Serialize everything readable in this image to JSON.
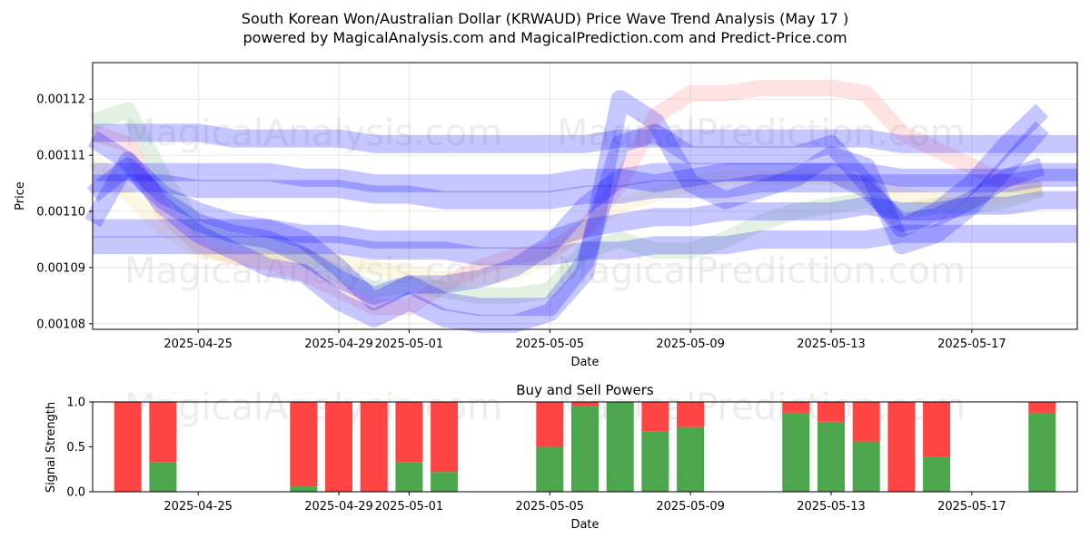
{
  "header": {
    "title_line1": "South Korean Won/Australian Dollar (KRWAUD) Price Wave Trend Analysis (May 17 )",
    "title_line2": "powered by MagicalAnalysis.com and MagicalPrediction.com and Predict-Price.com"
  },
  "watermarks": [
    "MagicalAnalysis.com",
    "MagicalPrediction.com"
  ],
  "chart_data": [
    {
      "type": "line",
      "title": "",
      "xlabel": "Date",
      "ylabel": "Price",
      "grid": true,
      "legend": "none",
      "xlim": [
        "2025-04-22",
        "2025-05-20"
      ],
      "ylim": [
        0.001079,
        0.0011265
      ],
      "x_ticks": [
        "2025-04-25",
        "2025-04-29",
        "2025-05-01",
        "2025-05-05",
        "2025-05-09",
        "2025-05-13",
        "2025-05-17"
      ],
      "y_ticks": [
        "0.00108",
        "0.00109",
        "0.00110",
        "0.00111",
        "0.00112"
      ],
      "series_colors": {
        "blue": "#0000ff",
        "red": "#ff9999",
        "green": "#99cc99",
        "yellow": "#f5e6a0"
      },
      "x": [
        "2025-04-22",
        "2025-04-23",
        "2025-04-24",
        "2025-04-25",
        "2025-04-26",
        "2025-04-27",
        "2025-04-28",
        "2025-04-29",
        "2025-04-30",
        "2025-05-01",
        "2025-05-02",
        "2025-05-03",
        "2025-05-04",
        "2025-05-05",
        "2025-05-06",
        "2025-05-07",
        "2025-05-08",
        "2025-05-09",
        "2025-05-10",
        "2025-05-11",
        "2025-05-12",
        "2025-05-13",
        "2025-05-14",
        "2025-05-15",
        "2025-05-16",
        "2025-05-17",
        "2025-05-18",
        "2025-05-19",
        "2025-05-20"
      ],
      "series": [
        {
          "color": "red",
          "values": [
            0.001114,
            0.001112,
            0.0011,
            0.001094,
            0.001092,
            0.001091,
            0.001089,
            0.001086,
            0.001083,
            0.001083,
            0.001087,
            0.00109,
            0.001092,
            0.001093,
            0.001097,
            0.001105,
            0.001117,
            0.001121,
            0.001121,
            0.001122,
            0.001122,
            0.001122,
            0.001121,
            0.001114,
            0.001111,
            0.001108,
            0.001105,
            0.001104,
            null
          ]
        },
        {
          "color": "green",
          "values": [
            0.001116,
            0.001118,
            0.001106,
            0.001097,
            0.001095,
            0.001094,
            0.001092,
            0.001089,
            0.001086,
            0.001087,
            0.001086,
            0.001085,
            0.001085,
            0.001086,
            0.001093,
            0.001095,
            0.001093,
            0.001093,
            0.001095,
            0.001098,
            0.0011,
            0.001101,
            0.001102,
            0.0011,
            0.001101,
            0.001101,
            0.001102,
            0.001104,
            null
          ]
        },
        {
          "color": "yellow",
          "values": [
            0.001109,
            0.001103,
            0.001097,
            0.001093,
            0.001092,
            0.001092,
            0.001092,
            0.001091,
            0.00109,
            0.001089,
            0.001088,
            0.001088,
            0.001089,
            0.001092,
            0.001097,
            0.001101,
            0.001103,
            0.001105,
            0.001106,
            0.001106,
            0.001106,
            0.001106,
            0.001105,
            0.001103,
            0.001102,
            0.001102,
            0.001103,
            0.001104,
            null
          ]
        },
        {
          "color": "blue",
          "values": [
            0.001098,
            0.001109,
            0.001103,
            0.0011,
            0.001098,
            0.001097,
            0.001095,
            0.00109,
            0.001084,
            0.001087,
            0.001084,
            0.001083,
            0.001083,
            0.001083,
            0.001091,
            0.001112,
            0.001114,
            0.00111,
            0.00111,
            0.00111,
            0.00111,
            0.001112,
            0.001105,
            0.001097,
            0.0011,
            0.001105,
            0.001112,
            0.001118,
            null
          ]
        },
        {
          "color": "blue",
          "values": [
            0.001113,
            0.001109,
            0.001101,
            0.001096,
            0.001093,
            0.00109,
            0.001089,
            0.001084,
            0.001081,
            0.001084,
            0.001081,
            0.00108,
            0.00108,
            0.001082,
            0.001089,
            0.00112,
            0.001116,
            0.001105,
            0.001102,
            0.001104,
            0.001106,
            0.00111,
            0.001108,
            0.001094,
            0.001096,
            0.001101,
            0.001108,
            0.001115,
            null
          ]
        },
        {
          "color": "blue",
          "values": [
            0.001103,
            0.001108,
            0.001102,
            0.001098,
            0.001096,
            0.001095,
            0.001092,
            0.001088,
            0.001085,
            0.001087,
            0.001087,
            0.001088,
            0.00109,
            0.001094,
            0.001101,
            0.001106,
            0.001105,
            0.001106,
            0.001107,
            0.001107,
            0.001107,
            0.001107,
            0.001104,
            0.001098,
            0.001099,
            0.001102,
            0.001106,
            0.001108,
            null
          ]
        },
        {
          "color": "blue",
          "values": [
            0.001114,
            0.001114,
            0.001114,
            0.001114,
            0.001113,
            0.001113,
            0.001113,
            0.001113,
            0.001112,
            0.001112,
            0.001112,
            0.001112,
            0.001112,
            0.001112,
            0.001112,
            0.001113,
            0.001113,
            0.001113,
            0.001113,
            0.001113,
            0.001113,
            0.001113,
            0.001113,
            0.001112,
            0.001112,
            0.001112,
            0.001112,
            0.001112,
            0.001112
          ]
        },
        {
          "color": "blue",
          "values": [
            0.001107,
            0.001107,
            0.001107,
            0.001107,
            0.001107,
            0.001107,
            0.001106,
            0.001106,
            0.001105,
            0.001105,
            0.001105,
            0.001105,
            0.001105,
            0.001105,
            0.001106,
            0.001106,
            0.001107,
            0.001107,
            0.001107,
            0.001107,
            0.001107,
            0.001107,
            0.001107,
            0.001106,
            0.001106,
            0.001106,
            0.001106,
            0.001107,
            0.001107
          ]
        },
        {
          "color": "blue",
          "values": [
            0.001105,
            0.001105,
            0.001105,
            0.001104,
            0.001104,
            0.001104,
            0.001104,
            0.001104,
            0.001103,
            0.001103,
            0.001102,
            0.001102,
            0.001102,
            0.001102,
            0.001103,
            0.001103,
            0.001104,
            0.001104,
            0.001104,
            0.001105,
            0.001105,
            0.001105,
            0.001105,
            0.001105,
            0.001105,
            0.001105,
            0.001105,
            0.001106,
            0.001106
          ]
        },
        {
          "color": "blue",
          "values": [
            0.001097,
            0.001097,
            0.001097,
            0.001097,
            0.001097,
            0.001097,
            0.001096,
            0.001096,
            0.001095,
            0.001095,
            0.001095,
            0.001095,
            0.001095,
            0.001095,
            0.001097,
            0.001098,
            0.001099,
            0.001099,
            0.0011,
            0.0011,
            0.0011,
            0.0011,
            0.001101,
            0.0011,
            0.0011,
            0.001101,
            0.001101,
            0.001102,
            0.001102
          ]
        },
        {
          "color": "blue",
          "values": [
            0.001094,
            0.001094,
            0.001094,
            0.001094,
            0.001094,
            0.001094,
            0.001094,
            0.001094,
            0.001093,
            0.001093,
            0.001093,
            0.001092,
            0.001092,
            0.001092,
            0.001093,
            0.001093,
            0.001094,
            0.001094,
            0.001094,
            0.001095,
            0.001095,
            0.001095,
            0.001095,
            0.001096,
            0.001096,
            0.001096,
            0.001096,
            0.001096,
            0.001096
          ]
        }
      ]
    },
    {
      "type": "bar",
      "title": "Buy and Sell Powers",
      "xlabel": "Date",
      "ylabel": "Signal Strength",
      "grid": false,
      "legend": "none",
      "xlim": [
        "2025-04-22",
        "2025-05-20"
      ],
      "ylim": [
        0,
        1.0
      ],
      "x_ticks": [
        "2025-04-25",
        "2025-04-29",
        "2025-05-01",
        "2025-05-05",
        "2025-05-09",
        "2025-05-13",
        "2025-05-17"
      ],
      "y_ticks": [
        "0.0",
        "0.5",
        "1.0"
      ],
      "colors": {
        "buy": "#4ca64c",
        "sell": "#ff4444"
      },
      "bars": [
        {
          "date": "2025-04-23",
          "buy": 0.0
        },
        {
          "date": "2025-04-24",
          "buy": 0.33
        },
        {
          "date": "2025-04-28",
          "buy": 0.06
        },
        {
          "date": "2025-04-29",
          "buy": 0.0
        },
        {
          "date": "2025-04-30",
          "buy": 0.0
        },
        {
          "date": "2025-05-01",
          "buy": 0.33
        },
        {
          "date": "2025-05-02",
          "buy": 0.22
        },
        {
          "date": "2025-05-05",
          "buy": 0.5
        },
        {
          "date": "2025-05-06",
          "buy": 0.95
        },
        {
          "date": "2025-05-07",
          "buy": 1.0
        },
        {
          "date": "2025-05-08",
          "buy": 0.67
        },
        {
          "date": "2025-05-09",
          "buy": 0.72
        },
        {
          "date": "2025-05-12",
          "buy": 0.88
        },
        {
          "date": "2025-05-13",
          "buy": 0.78
        },
        {
          "date": "2025-05-14",
          "buy": 0.56
        },
        {
          "date": "2025-05-15",
          "buy": 0.0
        },
        {
          "date": "2025-05-16",
          "buy": 0.39
        },
        {
          "date": "2025-05-19",
          "buy": 0.88
        }
      ]
    }
  ]
}
